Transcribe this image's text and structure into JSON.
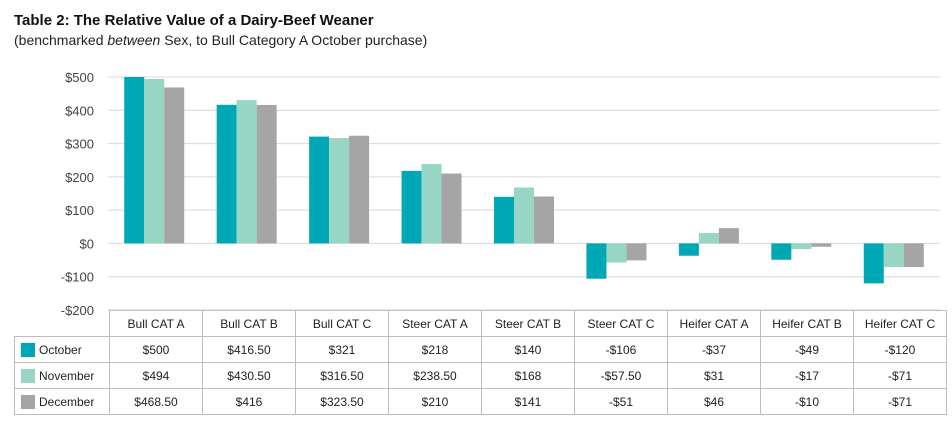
{
  "title": "Table 2: The Relative Value of a Dairy-Beef Weaner",
  "subtitle_prefix": "(benchmarked ",
  "subtitle_em": "between",
  "subtitle_suffix": " Sex, to Bull Category A October purchase)",
  "chart_data": {
    "type": "bar",
    "title": "Table 2: The Relative Value of a Dairy-Beef Weaner",
    "subtitle": "(benchmarked between Sex, to Bull Category A October purchase)",
    "xlabel": "",
    "ylabel": "",
    "ylim": [
      -200,
      500
    ],
    "yticks": [
      500,
      400,
      300,
      200,
      100,
      0,
      -100,
      -200
    ],
    "ytick_labels": [
      "$500",
      "$400",
      "$300",
      "$200",
      "$100",
      "$0",
      "-$100",
      "-$200"
    ],
    "grid": true,
    "legend": "data-table-bottom",
    "categories": [
      "Bull CAT A",
      "Bull CAT B",
      "Bull CAT C",
      "Steer CAT A",
      "Steer CAT B",
      "Steer CAT C",
      "Heifer CAT A",
      "Heifer CAT B",
      "Heifer CAT C"
    ],
    "series": [
      {
        "name": "October",
        "color": "#00a8b5",
        "values": [
          500,
          416.5,
          321,
          218,
          140,
          -106,
          -37,
          -49,
          -120
        ],
        "labels": [
          "$500",
          "$416.50",
          "$321",
          "$218",
          "$140",
          "-$106",
          "-$37",
          "-$49",
          "-$120"
        ]
      },
      {
        "name": "November",
        "color": "#97d6c4",
        "values": [
          494,
          430.5,
          316.5,
          238.5,
          168,
          -57.5,
          31,
          -17,
          -71
        ],
        "labels": [
          "$494",
          "$430.50",
          "$316.50",
          "$238.50",
          "$168",
          "-$57.50",
          "$31",
          "-$17",
          "-$71"
        ]
      },
      {
        "name": "December",
        "color": "#a5a5a5",
        "values": [
          468.5,
          416,
          323.5,
          210,
          141,
          -51,
          46,
          -10,
          -71
        ],
        "labels": [
          "$468.50",
          "$416",
          "$323.50",
          "$210",
          "$141",
          "-$51",
          "$46",
          "-$10",
          "-$71"
        ]
      }
    ]
  }
}
